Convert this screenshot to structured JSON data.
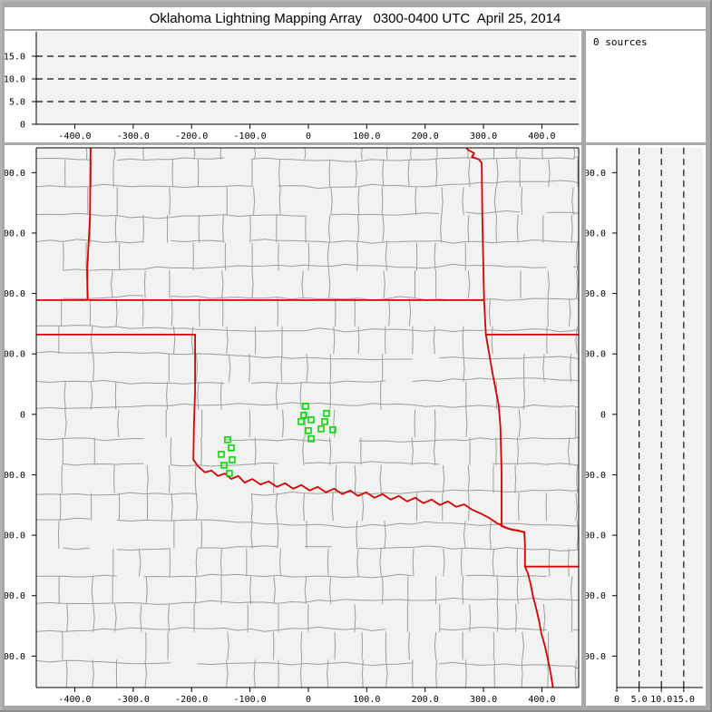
{
  "window_title": "Oklahoma Lightning Mapping Array   0300-0400 UTC  April 25, 2014",
  "sources_panel": {
    "label": "0 sources"
  },
  "colors": {
    "frame_gray": "#a8a8a8",
    "panel_white": "#ffffff",
    "plot_background": "#f2f2f1",
    "axis_black": "#000000",
    "county_line": "#9e9e9e",
    "state_border_red": "#d40000",
    "station_green": "#00dd00",
    "dashed_line": "#111111"
  },
  "chart_data": [
    {
      "id": "alt-ew",
      "type": "scatter",
      "description": "Altitude (km) vs east-west distance (km); no source points plotted this hour",
      "x_range": [
        -466,
        463
      ],
      "y_range": [
        0,
        20.4
      ],
      "x_tick_values": [
        -400,
        -300,
        -200,
        -100,
        0,
        100,
        200,
        300,
        400
      ],
      "x_tick_labels": [
        "-400.0",
        "-300.0",
        "-200.0",
        "-100.0",
        "0",
        "100.0",
        "200.0",
        "300.0",
        "400.0"
      ],
      "y_tick_values": [
        0,
        5,
        10,
        15
      ],
      "y_tick_labels": [
        "0",
        "5.0",
        "10.0",
        "15.0"
      ],
      "dashed": {
        "axis": "y",
        "values": [
          5,
          10,
          15
        ]
      },
      "points": []
    },
    {
      "id": "map",
      "type": "scatter",
      "description": "Plan-view map, km east-west vs km north-south centered on the Oklahoma LMA; green squares are LMA stations; no source points plotted this hour",
      "x_range": [
        -466,
        463
      ],
      "y_range": [
        -452,
        441
      ],
      "x_tick_values": [
        -400,
        -300,
        -200,
        -100,
        0,
        100,
        200,
        300,
        400
      ],
      "x_tick_labels": [
        "-400.0",
        "-300.0",
        "-200.0",
        "-100.0",
        "0",
        "100.0",
        "200.0",
        "300.0",
        "400.0"
      ],
      "y_tick_values": [
        400,
        300,
        200,
        100,
        0,
        -100,
        -200,
        -300,
        -400
      ],
      "y_tick_labels": [
        "400.0",
        "300.0",
        "200.0",
        "100.0",
        "0",
        "-100.0",
        "-200.0",
        "-300.0",
        "-400.0"
      ],
      "points": [],
      "stations_km": [
        [
          -4.7,
          13.5
        ],
        [
          -7.8,
          -1.5
        ],
        [
          31.1,
          1.5
        ],
        [
          -12.4,
          -12
        ],
        [
          4.7,
          -9
        ],
        [
          28.0,
          -12
        ],
        [
          0.0,
          -27
        ],
        [
          21.8,
          -24
        ],
        [
          41.9,
          -25.5
        ],
        [
          4.7,
          -40.5
        ],
        [
          -138.3,
          -42
        ],
        [
          -132.0,
          -55.5
        ],
        [
          -149.1,
          -66.1
        ],
        [
          -130.5,
          -75.1
        ],
        [
          -144.5,
          -84.1
        ],
        [
          -135.2,
          -97.6
        ]
      ],
      "state_borders_km": [
        [
          [
            -373,
            446
          ],
          [
            -374,
            326
          ],
          [
            -379,
            236
          ],
          [
            -378,
            189
          ]
        ],
        [
          [
            -466,
            189
          ],
          [
            300,
            189
          ]
        ],
        [
          [
            -466,
            132
          ],
          [
            -194,
            132
          ],
          [
            -194,
            40
          ],
          [
            -196,
            -20
          ],
          [
            -197,
            -75
          ],
          [
            -189,
            -86
          ],
          [
            -177,
            -96
          ],
          [
            -166,
            -93
          ],
          [
            -155,
            -102
          ],
          [
            -143,
            -98
          ],
          [
            -132,
            -107
          ],
          [
            -120,
            -102
          ],
          [
            -109,
            -113
          ],
          [
            -96,
            -107
          ],
          [
            -82,
            -116
          ],
          [
            -68,
            -111
          ],
          [
            -54,
            -120
          ],
          [
            -40,
            -114
          ],
          [
            -26,
            -123
          ],
          [
            -12,
            -117
          ],
          [
            2,
            -126
          ],
          [
            16,
            -120
          ],
          [
            30,
            -129
          ],
          [
            44,
            -123
          ],
          [
            58,
            -132
          ],
          [
            72,
            -126
          ],
          [
            85,
            -135
          ],
          [
            99,
            -129
          ],
          [
            113,
            -138
          ],
          [
            127,
            -132
          ],
          [
            141,
            -141
          ],
          [
            155,
            -135
          ],
          [
            169,
            -144
          ],
          [
            183,
            -138
          ],
          [
            197,
            -147
          ],
          [
            211,
            -141
          ],
          [
            225,
            -150
          ],
          [
            239,
            -144
          ],
          [
            253,
            -153
          ],
          [
            267,
            -149
          ],
          [
            281,
            -158
          ],
          [
            295,
            -164
          ],
          [
            309,
            -171
          ],
          [
            323,
            -180
          ],
          [
            336,
            -186
          ],
          [
            348,
            -191
          ],
          [
            359,
            -192
          ],
          [
            370,
            -195
          ]
        ],
        [
          [
            269,
            446
          ],
          [
            273,
            438
          ],
          [
            284,
            432
          ],
          [
            280,
            426
          ],
          [
            292,
            422
          ],
          [
            297,
            416
          ],
          [
            298,
            326
          ],
          [
            301,
            189
          ],
          [
            304,
            132
          ],
          [
            315,
            71
          ],
          [
            326,
            15
          ],
          [
            329,
            -20
          ],
          [
            331,
            -95
          ],
          [
            331,
            -185
          ],
          [
            342,
            -189
          ],
          [
            356,
            -192
          ],
          [
            370,
            -195
          ],
          [
            371,
            -215
          ],
          [
            371,
            -252
          ],
          [
            376,
            -263
          ],
          [
            381,
            -282
          ],
          [
            385,
            -302
          ],
          [
            390,
            -320
          ],
          [
            395,
            -341
          ],
          [
            399,
            -362
          ],
          [
            405,
            -383
          ],
          [
            410,
            -404
          ],
          [
            415,
            -428
          ],
          [
            419,
            -452
          ]
        ],
        [
          [
            304,
            132
          ],
          [
            463,
            132
          ]
        ],
        [
          [
            371,
            -252
          ],
          [
            463,
            -252
          ]
        ]
      ],
      "county_grid": {
        "cell_km": 46,
        "jitter_km": 2.5,
        "v_offset_km": 16,
        "h_skip": 0.1,
        "v_skip": 0.22,
        "seed": 987654
      }
    },
    {
      "id": "alt-ns",
      "type": "scatter",
      "description": "North-south distance (km) vs altitude (km); no source points plotted this hour",
      "x_range": [
        0,
        19.3
      ],
      "y_range": [
        -452,
        441
      ],
      "x_tick_values": [
        0,
        5,
        10,
        15
      ],
      "x_tick_labels": [
        "0",
        "5.0",
        "10.0",
        "15.0"
      ],
      "y_tick_values": [
        400,
        300,
        200,
        100,
        0,
        -100,
        -200,
        -300,
        -400
      ],
      "y_tick_labels": [
        "400.0",
        "300.0",
        "200.0",
        "100.0",
        "0",
        "-100.0",
        "-200.0",
        "-300.0",
        "-400.0"
      ],
      "dashed": {
        "axis": "x",
        "values": [
          5,
          10,
          15
        ]
      },
      "points": []
    }
  ]
}
